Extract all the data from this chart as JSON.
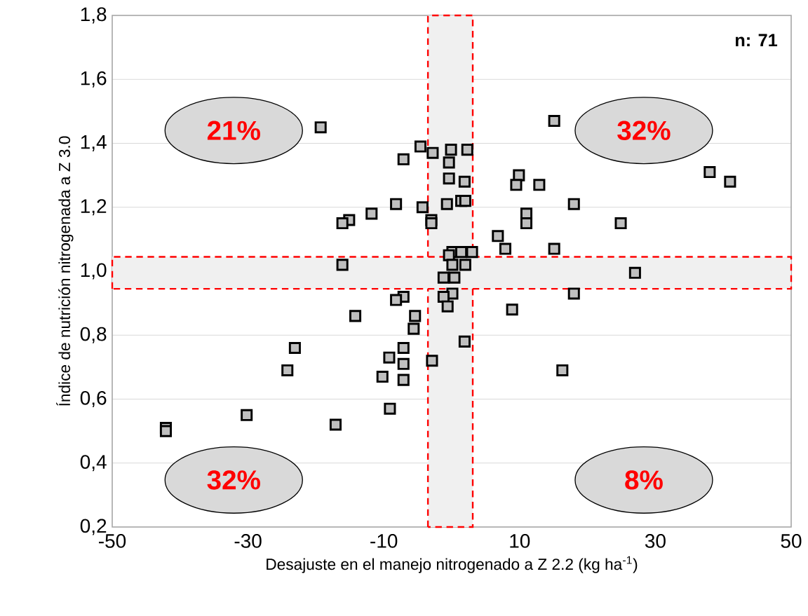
{
  "chart_data": {
    "type": "scatter",
    "xlabel": "Desajuste en el manejo nitrogenado a Z 2.2 (kg ha$^{-1}$)",
    "ylabel": "Índice de nutrición nitrogenada a Z 3.0",
    "annotations": [
      "21%",
      "32%",
      "32%",
      "8%",
      "n: 71"
    ],
    "xlim": [
      -50,
      50
    ],
    "xticks": [
      -50,
      -30,
      -10,
      10,
      30,
      50
    ],
    "ylim": [
      0.2,
      1.8
    ],
    "yticks": [
      {
        "value": 0.2,
        "label": "0,2"
      },
      {
        "value": 0.4,
        "label": "0,4"
      },
      {
        "value": 0.6,
        "label": "0,6"
      },
      {
        "value": 0.8,
        "label": "0,8"
      },
      {
        "value": 1.0,
        "label": "1,0"
      },
      {
        "value": 1.2,
        "label": "1,2"
      },
      {
        "value": 1.4,
        "label": "1,4"
      },
      {
        "value": 1.6,
        "label": "1,6"
      },
      {
        "value": 1.8,
        "label": "1,8"
      }
    ],
    "grid": "y",
    "marker": "square",
    "bands": [
      {
        "axis": "x",
        "from": -3.5,
        "to": 3.1,
        "color": "#ff0000"
      },
      {
        "axis": "y",
        "from": 0.945,
        "to": 1.045,
        "color": "#ff0000"
      }
    ],
    "series": [
      {
        "color": "#bfbfbf",
        "x": [
          -19.3,
          15.1,
          38.0,
          41.0,
          -4.6,
          -7.1,
          -2.8,
          -0.1,
          2.3,
          -0.4,
          -0.4,
          1.9,
          9.9,
          9.5,
          12.9,
          18.0,
          -8.2,
          -4.3,
          -11.8,
          -15.1,
          -16.1,
          -0.7,
          1.4,
          2.0,
          -3.0,
          -3.0,
          11.0,
          11.0,
          24.9,
          6.8,
          7.9,
          15.1,
          3.0,
          0.1,
          1.4,
          -0.4,
          -16.1,
          2.0,
          0.1,
          27.0,
          -1.2,
          0.4,
          18.0,
          0.1,
          -1.2,
          -7.1,
          -8.2,
          8.9,
          -0.6,
          -14.2,
          -5.4,
          -5.6,
          -7.1,
          -23.1,
          -9.2,
          -7.1,
          -2.9,
          1.9,
          -24.2,
          16.3,
          -10.2,
          -7.1,
          -9.1,
          -30.2,
          -17.1,
          -42.1,
          -42.1
        ],
        "values": [
          1.45,
          1.47,
          1.31,
          1.28,
          1.39,
          1.35,
          1.37,
          1.38,
          1.38,
          1.34,
          1.29,
          1.28,
          1.3,
          1.27,
          1.27,
          1.21,
          1.21,
          1.2,
          1.18,
          1.16,
          1.15,
          1.21,
          1.22,
          1.22,
          1.16,
          1.15,
          1.18,
          1.15,
          1.15,
          1.11,
          1.07,
          1.07,
          1.06,
          1.06,
          1.06,
          1.05,
          1.02,
          1.02,
          1.02,
          0.995,
          0.98,
          0.98,
          0.93,
          0.93,
          0.92,
          0.92,
          0.91,
          0.88,
          0.89,
          0.86,
          0.86,
          0.82,
          0.76,
          0.76,
          0.73,
          0.71,
          0.72,
          0.78,
          0.69,
          0.69,
          0.67,
          0.66,
          0.57,
          0.55,
          0.52,
          0.51,
          0.5
        ]
      }
    ]
  }
}
